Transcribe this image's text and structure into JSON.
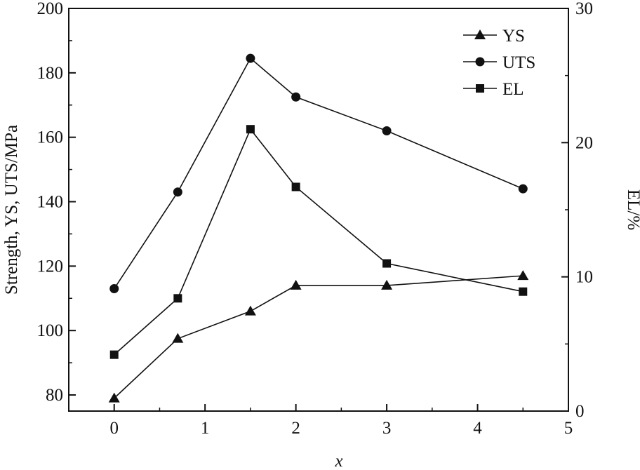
{
  "chart_data": {
    "type": "line",
    "x": [
      0,
      0.7,
      1.5,
      2,
      3,
      4.5
    ],
    "xlabel": "x",
    "xlim": [
      -0.5,
      5
    ],
    "xticks": [
      "0",
      "1",
      "2",
      "3",
      "4",
      "5"
    ],
    "ylabel_left": "Strength, YS, UTS/MPa",
    "ylim_left": [
      75,
      200
    ],
    "yticks_left": [
      "80",
      "100",
      "120",
      "140",
      "160",
      "180",
      "200"
    ],
    "ylabel_right": "EL/%",
    "ylim_right": [
      0,
      30
    ],
    "yticks_right": [
      "0",
      "10",
      "20",
      "30"
    ],
    "grid": false,
    "legend_position": "top-right",
    "series": [
      {
        "name": "YS",
        "axis": "left",
        "marker": "triangle",
        "values": [
          79,
          97.5,
          106,
          114,
          114,
          117
        ]
      },
      {
        "name": "UTS",
        "axis": "left",
        "marker": "circle",
        "values": [
          113,
          143,
          184.5,
          172.5,
          162,
          144
        ]
      },
      {
        "name": "EL",
        "axis": "right",
        "marker": "square",
        "values": [
          4.2,
          8.4,
          21,
          16.7,
          11,
          8.9
        ]
      }
    ]
  }
}
